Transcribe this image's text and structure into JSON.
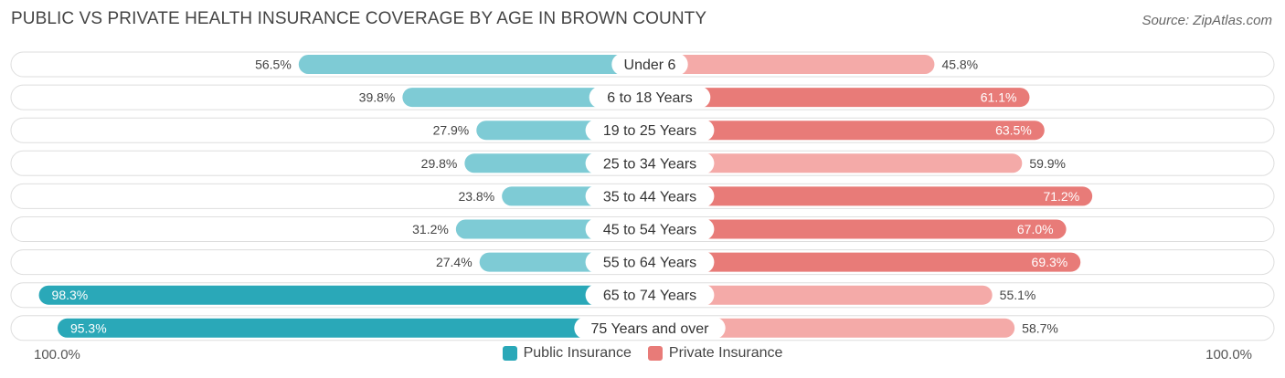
{
  "title": "PUBLIC VS PRIVATE HEALTH INSURANCE COVERAGE BY AGE IN BROWN COUNTY",
  "source": "Source: ZipAtlas.com",
  "axis": {
    "left_label": "100.0%",
    "right_label": "100.0%"
  },
  "colors": {
    "public_light": "#7ecbd5",
    "public_dark": "#2aa8b8",
    "private_light": "#f4aaa8",
    "private_dark": "#e87b78",
    "track": "#f0f0f0"
  },
  "chart_data": {
    "type": "bar",
    "orientation": "horizontal-diverging",
    "categories": [
      "Under 6",
      "6 to 18 Years",
      "19 to 25 Years",
      "25 to 34 Years",
      "35 to 44 Years",
      "45 to 54 Years",
      "55 to 64 Years",
      "65 to 74 Years",
      "75 Years and over"
    ],
    "series": [
      {
        "name": "Public Insurance",
        "values": [
          56.5,
          39.8,
          27.9,
          29.8,
          23.8,
          31.2,
          27.4,
          98.3,
          95.3
        ],
        "labels": [
          "56.5%",
          "39.8%",
          "27.9%",
          "29.8%",
          "23.8%",
          "31.2%",
          "27.4%",
          "98.3%",
          "95.3%"
        ]
      },
      {
        "name": "Private Insurance",
        "values": [
          45.8,
          61.1,
          63.5,
          59.9,
          71.2,
          67.0,
          69.3,
          55.1,
          58.7
        ],
        "labels": [
          "45.8%",
          "61.1%",
          "63.5%",
          "59.9%",
          "71.2%",
          "67.0%",
          "69.3%",
          "55.1%",
          "58.7%"
        ]
      }
    ],
    "xlim": [
      -100,
      100
    ]
  }
}
